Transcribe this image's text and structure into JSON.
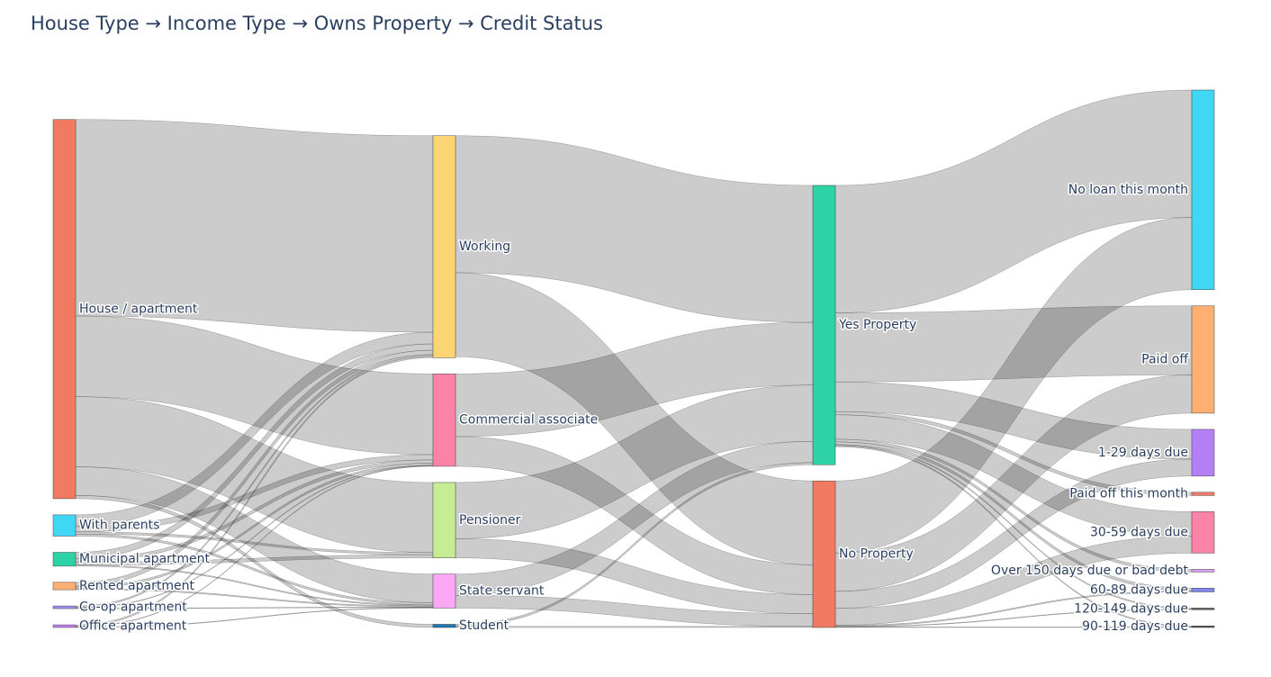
{
  "title": "House Type → Income Type → Owns Property → Credit Status",
  "chart_data": {
    "type": "sankey",
    "title": "House Type → Income Type → Owns Property → Credit Status",
    "nodes": [
      {
        "id": "house",
        "label": "House / apartment",
        "column": 0,
        "color": "#F27A63"
      },
      {
        "id": "parents",
        "label": "With parents",
        "column": 0,
        "color": "#40D7F5"
      },
      {
        "id": "municipal",
        "label": "Municipal apartment",
        "column": 0,
        "color": "#2ED3A5"
      },
      {
        "id": "rented",
        "label": "Rented apartment",
        "column": 0,
        "color": "#FFAF72"
      },
      {
        "id": "coop",
        "label": "Co-op apartment",
        "column": 0,
        "color": "#9A91F2"
      },
      {
        "id": "office",
        "label": "Office apartment",
        "column": 0,
        "color": "#C37BF2"
      },
      {
        "id": "working",
        "label": "Working",
        "column": 1,
        "color": "#FBD474"
      },
      {
        "id": "commercial",
        "label": "Commercial associate",
        "column": 1,
        "color": "#FC83A8"
      },
      {
        "id": "pensioner",
        "label": "Pensioner",
        "column": 1,
        "color": "#C6EC94"
      },
      {
        "id": "state",
        "label": "State servant",
        "column": 1,
        "color": "#FCA7F6"
      },
      {
        "id": "student",
        "label": "Student",
        "column": 1,
        "color": "#1F77B4"
      },
      {
        "id": "yes",
        "label": "Yes Property",
        "column": 2,
        "color": "#2ED3A5"
      },
      {
        "id": "no",
        "label": "No Property",
        "column": 2,
        "color": "#F27A63"
      },
      {
        "id": "noloan",
        "label": "No loan this month",
        "column": 3,
        "color": "#40D7F5"
      },
      {
        "id": "paidoff",
        "label": "Paid off",
        "column": 3,
        "color": "#FFAF72"
      },
      {
        "id": "d1_29",
        "label": "1-29 days due",
        "column": 3,
        "color": "#B47EF5"
      },
      {
        "id": "paidmonth",
        "label": "Paid off this month",
        "column": 3,
        "color": "#F27A63"
      },
      {
        "id": "d30_59",
        "label": "30-59 days due",
        "column": 3,
        "color": "#FC83A8"
      },
      {
        "id": "over150",
        "label": "Over 150 days due or bad debt",
        "column": 3,
        "color": "#D7A0F0"
      },
      {
        "id": "d60_89",
        "label": "60-89 days due",
        "column": 3,
        "color": "#7F86EE"
      },
      {
        "id": "d120_149",
        "label": "120-149 days due",
        "column": 3,
        "color": "#555555"
      },
      {
        "id": "d90_119",
        "label": "90-119 days due",
        "column": 3,
        "color": "#555555"
      }
    ],
    "links": [
      {
        "source": "house",
        "target": "working",
        "value": 18.5
      },
      {
        "source": "house",
        "target": "commercial",
        "value": 7.6
      },
      {
        "source": "house",
        "target": "pensioner",
        "value": 6.6
      },
      {
        "source": "house",
        "target": "state",
        "value": 2.7
      },
      {
        "source": "house",
        "target": "student",
        "value": 0.3
      },
      {
        "source": "parents",
        "target": "working",
        "value": 1.1
      },
      {
        "source": "parents",
        "target": "commercial",
        "value": 0.5
      },
      {
        "source": "parents",
        "target": "pensioner",
        "value": 0.2
      },
      {
        "source": "parents",
        "target": "state",
        "value": 0.2
      },
      {
        "source": "municipal",
        "target": "working",
        "value": 0.6
      },
      {
        "source": "municipal",
        "target": "commercial",
        "value": 0.3
      },
      {
        "source": "municipal",
        "target": "pensioner",
        "value": 0.3
      },
      {
        "source": "municipal",
        "target": "state",
        "value": 0.1
      },
      {
        "source": "rented",
        "target": "working",
        "value": 0.4
      },
      {
        "source": "rented",
        "target": "commercial",
        "value": 0.2
      },
      {
        "source": "rented",
        "target": "state",
        "value": 0.1
      },
      {
        "source": "coop",
        "target": "working",
        "value": 0.15
      },
      {
        "source": "coop",
        "target": "commercial",
        "value": 0.05
      },
      {
        "source": "coop",
        "target": "state",
        "value": 0.05
      },
      {
        "source": "office",
        "target": "working",
        "value": 0.15
      },
      {
        "source": "office",
        "target": "commercial",
        "value": 0.05
      },
      {
        "source": "office",
        "target": "state",
        "value": 0.05
      },
      {
        "source": "working",
        "target": "yes",
        "value": 12.9
      },
      {
        "source": "working",
        "target": "no",
        "value": 7.9
      },
      {
        "source": "commercial",
        "target": "yes",
        "value": 5.9
      },
      {
        "source": "commercial",
        "target": "no",
        "value": 2.8
      },
      {
        "source": "pensioner",
        "target": "yes",
        "value": 5.3
      },
      {
        "source": "pensioner",
        "target": "no",
        "value": 1.8
      },
      {
        "source": "state",
        "target": "yes",
        "value": 2.0
      },
      {
        "source": "state",
        "target": "no",
        "value": 1.2
      },
      {
        "source": "student",
        "target": "yes",
        "value": 0.2
      },
      {
        "source": "student",
        "target": "no",
        "value": 0.1
      },
      {
        "source": "yes",
        "target": "noloan",
        "value": 12.0
      },
      {
        "source": "yes",
        "target": "paidoff",
        "value": 6.5
      },
      {
        "source": "yes",
        "target": "d1_29",
        "value": 2.8
      },
      {
        "source": "yes",
        "target": "paidmonth",
        "value": 0.3
      },
      {
        "source": "yes",
        "target": "d30_59",
        "value": 2.3
      },
      {
        "source": "yes",
        "target": "over150",
        "value": 0.25
      },
      {
        "source": "yes",
        "target": "d60_89",
        "value": 0.25
      },
      {
        "source": "yes",
        "target": "d120_149",
        "value": 0.1
      },
      {
        "source": "yes",
        "target": "d90_119",
        "value": 0.1
      },
      {
        "source": "no",
        "target": "noloan",
        "value": 6.8
      },
      {
        "source": "no",
        "target": "paidoff",
        "value": 3.6
      },
      {
        "source": "no",
        "target": "d1_29",
        "value": 1.6
      },
      {
        "source": "no",
        "target": "d30_59",
        "value": 1.6
      },
      {
        "source": "no",
        "target": "d60_89",
        "value": 0.1
      },
      {
        "source": "no",
        "target": "d120_149",
        "value": 0.05
      },
      {
        "source": "no",
        "target": "d90_119",
        "value": 0.05
      }
    ]
  }
}
